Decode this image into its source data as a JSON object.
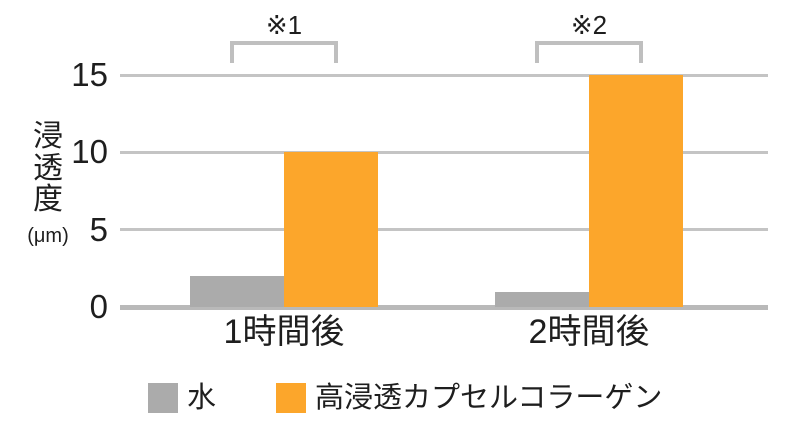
{
  "chart_data": {
    "type": "bar",
    "title": "",
    "ylabel": "浸透度",
    "ylabel_unit": "(μm)",
    "categories": [
      "1時間後",
      "2時間後"
    ],
    "series": [
      {
        "name": "水",
        "color": "#ababab",
        "values": [
          2,
          1
        ]
      },
      {
        "name": "高浸透カプセルコラーゲン",
        "color": "#fca62b",
        "values": [
          10,
          15
        ]
      }
    ],
    "yticks": [
      0,
      5,
      10,
      15
    ],
    "ylim": [
      0,
      15
    ],
    "grid": true,
    "legend_position": "bottom",
    "annotations": [
      {
        "label": "※1",
        "group_index": 0
      },
      {
        "label": "※2",
        "group_index": 1
      }
    ],
    "colors": {
      "gridline": "#c4c4c4",
      "baseline": "#b9b9b9",
      "bracket": "#bfbfbf",
      "text": "#1e1e1e",
      "background": "#ffffff"
    }
  }
}
